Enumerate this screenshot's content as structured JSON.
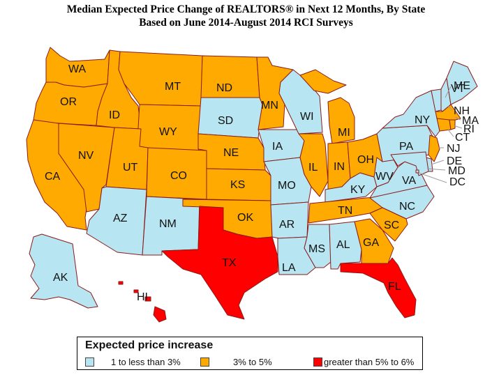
{
  "title": {
    "line1": "Median Expected Price Change of REALTORS® in Next 12 Months, By State",
    "line2": "Based on June 2014-August 2014 RCI Surveys"
  },
  "colors": {
    "low": "#b7e6f2",
    "mid": "#ffaa00",
    "high": "#ff0000",
    "border": "#8b1a1a"
  },
  "legend": {
    "title": "Expected price increase",
    "items": [
      {
        "key": "low",
        "label": "1 to less than 3%"
      },
      {
        "key": "mid",
        "label": "3% to 5%"
      },
      {
        "key": "high",
        "label": "greater than 5% to 6%"
      }
    ]
  },
  "states": {
    "WA": "mid",
    "OR": "mid",
    "CA": "mid",
    "NV": "mid",
    "ID": "mid",
    "MT": "mid",
    "WY": "mid",
    "UT": "mid",
    "CO": "mid",
    "AZ": "low",
    "NM": "low",
    "ND": "mid",
    "SD": "low",
    "NE": "mid",
    "KS": "mid",
    "OK": "mid",
    "TX": "high",
    "MN": "mid",
    "IA": "low",
    "MO": "low",
    "AR": "low",
    "LA": "low",
    "WI": "low",
    "IL": "mid",
    "MS": "low",
    "MI": "mid",
    "IN": "mid",
    "KY": "low",
    "TN": "mid",
    "AL": "low",
    "GA": "mid",
    "FL": "high",
    "OH": "mid",
    "WV": "low",
    "VA": "low",
    "NC": "low",
    "SC": "mid",
    "PA": "low",
    "NY": "low",
    "VT": "low",
    "NH": "low",
    "ME": "low",
    "MA": "mid",
    "RI": "mid",
    "CT": "mid",
    "NJ": "mid",
    "DE": "low",
    "MD": "low",
    "DC": "low",
    "AK": "low",
    "HI": "high"
  }
}
